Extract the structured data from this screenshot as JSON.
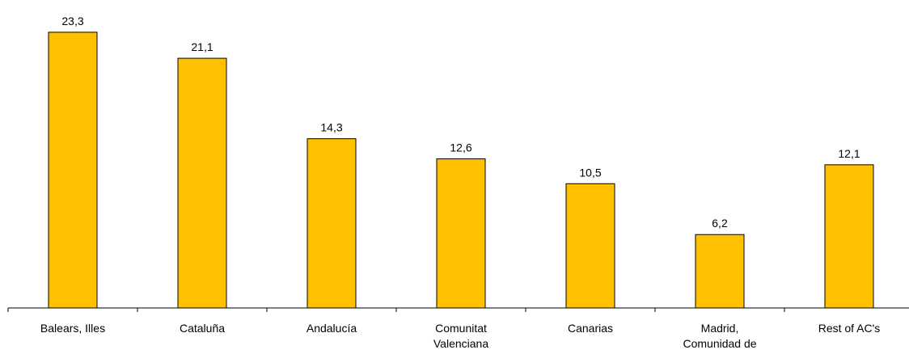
{
  "chart_data": {
    "type": "bar",
    "title": "",
    "xlabel": "",
    "ylabel": "",
    "categories": [
      "Balears, Illes",
      "Cataluña",
      "Andalucía",
      "Comunitat Valenciana",
      "Canarias",
      "Madrid, Comunidad de",
      "Rest of AC's"
    ],
    "category_lines": [
      [
        "Balears, Illes"
      ],
      [
        "Cataluña"
      ],
      [
        "Andalucía"
      ],
      [
        "Comunitat",
        "Valenciana"
      ],
      [
        "Canarias"
      ],
      [
        "Madrid,",
        "Comunidad de"
      ],
      [
        "Rest of AC's"
      ]
    ],
    "values": [
      23.3,
      21.1,
      14.3,
      12.6,
      10.5,
      6.2,
      12.1
    ],
    "value_labels": [
      "23,3",
      "21,1",
      "14,3",
      "12,6",
      "10,5",
      "6,2",
      "12,1"
    ],
    "ylim": [
      0,
      25
    ],
    "grid": false,
    "legend": "none",
    "y_axis_visible": false,
    "colors": {
      "bar_fill": "#FFC000",
      "bar_stroke": "#000000",
      "axis": "#000000",
      "text": "#000000"
    }
  }
}
